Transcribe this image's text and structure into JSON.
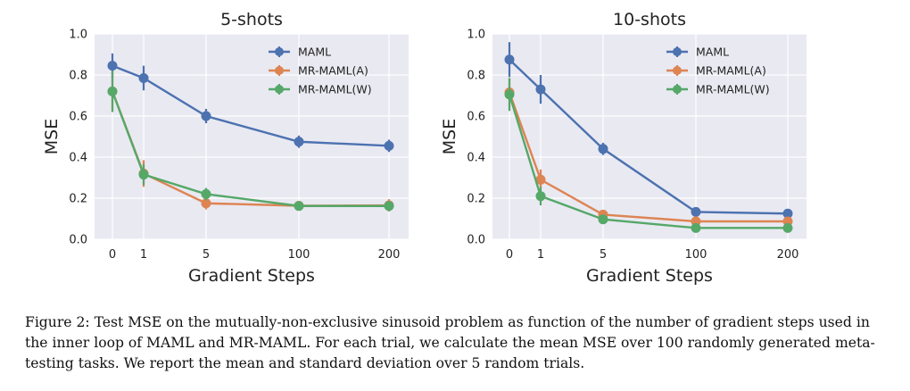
{
  "chart_data": [
    {
      "type": "line",
      "title": "5-shots",
      "xlabel": "Gradient Steps",
      "ylabel": "MSE",
      "categories": [
        "0",
        "1",
        "5",
        "100",
        "200"
      ],
      "yticks": [
        "0.0",
        "0.2",
        "0.4",
        "0.6",
        "0.8",
        "1.0"
      ],
      "ylim": [
        0,
        1
      ],
      "legend_position": "top-right",
      "series": [
        {
          "name": "MAML",
          "color": "#4c72b0",
          "values": [
            0.845,
            0.785,
            0.6,
            0.475,
            0.455
          ],
          "errors": [
            0.06,
            0.06,
            0.035,
            0.03,
            0.03
          ]
        },
        {
          "name": "MR-MAML(A)",
          "color": "#dd8452",
          "values": [
            0.72,
            0.32,
            0.175,
            0.163,
            0.165
          ],
          "errors": [
            0.1,
            0.065,
            0.03,
            0.02,
            0.03
          ]
        },
        {
          "name": "MR-MAML(W)",
          "color": "#55a868",
          "values": [
            0.72,
            0.315,
            0.22,
            0.162,
            0.162
          ],
          "errors": [
            0.1,
            0.05,
            0.03,
            0.02,
            0.025
          ]
        }
      ]
    },
    {
      "type": "line",
      "title": "10-shots",
      "xlabel": "Gradient Steps",
      "ylabel": "MSE",
      "categories": [
        "0",
        "1",
        "5",
        "100",
        "200"
      ],
      "yticks": [
        "0.0",
        "0.2",
        "0.4",
        "0.6",
        "0.8",
        "1.0"
      ],
      "ylim": [
        0,
        1
      ],
      "legend_position": "top-right",
      "series": [
        {
          "name": "MAML",
          "color": "#4c72b0",
          "values": [
            0.875,
            0.73,
            0.44,
            0.133,
            0.125
          ],
          "errors": [
            0.085,
            0.07,
            0.03,
            0.015,
            0.015
          ]
        },
        {
          "name": "MR-MAML(A)",
          "color": "#dd8452",
          "values": [
            0.715,
            0.29,
            0.12,
            0.087,
            0.087
          ],
          "errors": [
            0.07,
            0.05,
            0.02,
            0.012,
            0.012
          ]
        },
        {
          "name": "MR-MAML(W)",
          "color": "#55a868",
          "values": [
            0.705,
            0.21,
            0.097,
            0.055,
            0.055
          ],
          "errors": [
            0.08,
            0.045,
            0.015,
            0.012,
            0.012
          ]
        }
      ]
    }
  ],
  "caption": "Figure 2: Test MSE on the mutually-non-exclusive sinusoid problem as function of the number of gradient steps used in the inner loop of MAML and MR-MAML. For each trial, we calculate the mean MSE over 100 randomly generated meta-testing tasks. We report the mean and standard deviation over 5 random trials."
}
